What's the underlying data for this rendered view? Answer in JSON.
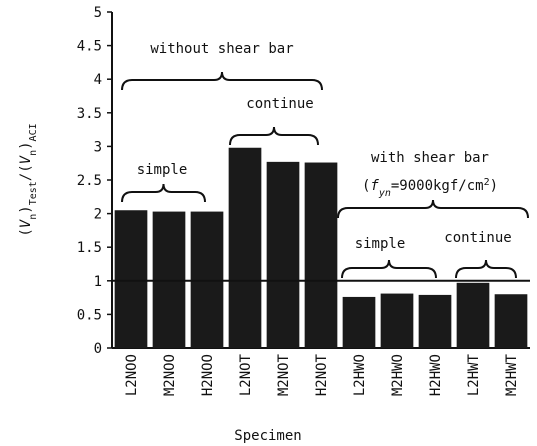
{
  "chart_data": {
    "type": "bar",
    "categories": [
      "L2NOO",
      "M2NOO",
      "H2NOO",
      "L2NOT",
      "M2NOT",
      "H2NOT",
      "L2HWO",
      "M2HWO",
      "H2HWO",
      "L2HWT",
      "M2HWT"
    ],
    "values": [
      2.05,
      2.03,
      2.03,
      2.98,
      2.77,
      2.76,
      0.76,
      0.81,
      0.79,
      0.97,
      0.8
    ],
    "color": "#1a1a1a",
    "ylim": [
      0,
      5
    ],
    "yticks": [
      0,
      0.5,
      1,
      1.5,
      2,
      2.5,
      3,
      3.5,
      4,
      4.5,
      5
    ],
    "reference_line": 1,
    "x_label": "Specimen",
    "y_label": [
      "(",
      "V",
      "n",
      ")",
      "Test",
      "/(",
      "V",
      "n",
      ")",
      "ACI"
    ],
    "annotations": [
      "without shear bar",
      "continue",
      "simple",
      "with shear bar",
      "simple",
      "continue"
    ],
    "formula": [
      "(",
      "f",
      "yn",
      "=9000kgf/cm",
      "2",
      ")"
    ]
  }
}
